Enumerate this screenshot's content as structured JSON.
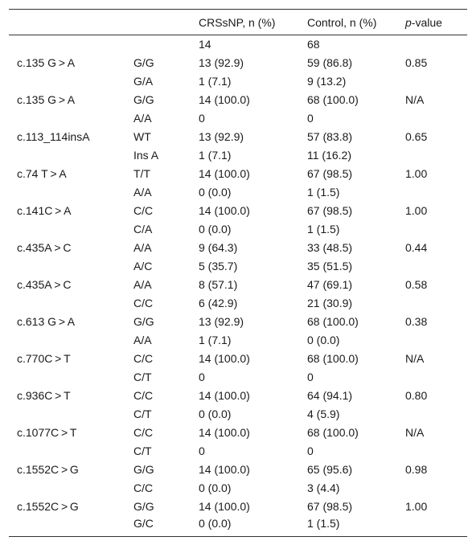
{
  "table": {
    "headers": [
      "",
      "",
      "CRSsNP, n (%)",
      "Control, n (%)",
      "-value"
    ],
    "pvalue_prefix": "p",
    "rows": [
      [
        "",
        "",
        "14",
        "68",
        ""
      ],
      [
        "c.135 G > A",
        "G/G",
        "13 (92.9)",
        "59 (86.8)",
        "0.85"
      ],
      [
        "",
        "G/A",
        "1 (7.1)",
        "9 (13.2)",
        ""
      ],
      [
        "c.135 G > A",
        "G/G",
        "14 (100.0)",
        "68 (100.0)",
        "N/A"
      ],
      [
        "",
        "A/A",
        "0",
        "0",
        ""
      ],
      [
        "c.113_114insA",
        "WT",
        "13 (92.9)",
        "57 (83.8)",
        "0.65"
      ],
      [
        "",
        "Ins A",
        "1 (7.1)",
        "11 (16.2)",
        ""
      ],
      [
        "c.74 T > A",
        "T/T",
        "14 (100.0)",
        "67 (98.5)",
        "1.00"
      ],
      [
        "",
        "A/A",
        "0 (0.0)",
        "1 (1.5)",
        ""
      ],
      [
        "c.141C > A",
        "C/C",
        "14 (100.0)",
        "67 (98.5)",
        "1.00"
      ],
      [
        "",
        "C/A",
        "0 (0.0)",
        "1 (1.5)",
        ""
      ],
      [
        "c.435A > C",
        "A/A",
        "9 (64.3)",
        "33 (48.5)",
        "0.44"
      ],
      [
        "",
        "A/C",
        "5 (35.7)",
        "35 (51.5)",
        ""
      ],
      [
        "c.435A > C",
        "A/A",
        "8 (57.1)",
        "47 (69.1)",
        "0.58"
      ],
      [
        "",
        "C/C",
        "6 (42.9)",
        "21 (30.9)",
        ""
      ],
      [
        "c.613 G > A",
        "G/G",
        "13 (92.9)",
        "68 (100.0)",
        "0.38"
      ],
      [
        "",
        "A/A",
        "1 (7.1)",
        "0 (0.0)",
        ""
      ],
      [
        "c.770C > T",
        "C/C",
        "14 (100.0)",
        "68 (100.0)",
        "N/A"
      ],
      [
        "",
        "C/T",
        "0",
        "0",
        ""
      ],
      [
        "c.936C > T",
        "C/C",
        "14 (100.0)",
        "64 (94.1)",
        "0.80"
      ],
      [
        "",
        "C/T",
        "0 (0.0)",
        "4 (5.9)",
        ""
      ],
      [
        "c.1077C > T",
        "C/C",
        "14 (100.0)",
        "68 (100.0)",
        "N/A"
      ],
      [
        "",
        "C/T",
        "0",
        "0",
        ""
      ],
      [
        "c.1552C > G",
        "G/G",
        "14 (100.0)",
        "65 (95.6)",
        "0.98"
      ],
      [
        "",
        "C/C",
        "0 (0.0)",
        "3 (4.4)",
        ""
      ],
      [
        "c.1552C > G",
        "G/G",
        "14 (100.0)",
        "67 (98.5)",
        "1.00"
      ],
      [
        "",
        "G/C",
        "0 (0.0)",
        "1 (1.5)",
        ""
      ]
    ]
  }
}
